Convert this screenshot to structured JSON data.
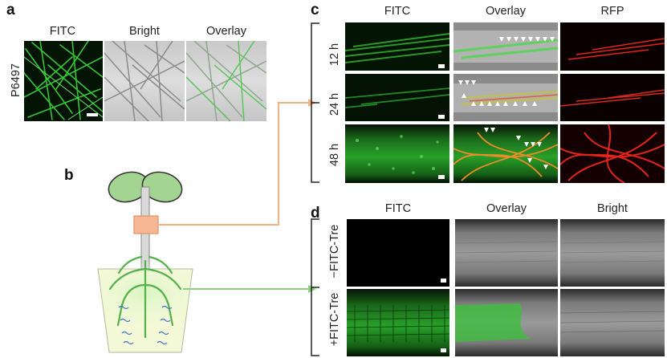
{
  "panel_a": {
    "label": "a",
    "columns": [
      "FITC",
      "Bright",
      "Overlay"
    ],
    "row_label": "P6497"
  },
  "panel_b": {
    "label": "b"
  },
  "panel_c": {
    "label": "c",
    "columns": [
      "FITC",
      "Overlay",
      "RFP"
    ],
    "rows": [
      "12 h",
      "24 h",
      "48 h"
    ]
  },
  "panel_d": {
    "label": "d",
    "columns": [
      "FITC",
      "Overlay",
      "Bright"
    ],
    "rows": [
      "−FITC-Tre",
      "+FITC-Tre"
    ]
  },
  "colors": {
    "fitc_green": "#3cc23c",
    "rfp_red": "#e3241b",
    "connector_orange": "#f4b183",
    "connector_green": "#8fcf7f",
    "box_fill": "#f6b894"
  }
}
